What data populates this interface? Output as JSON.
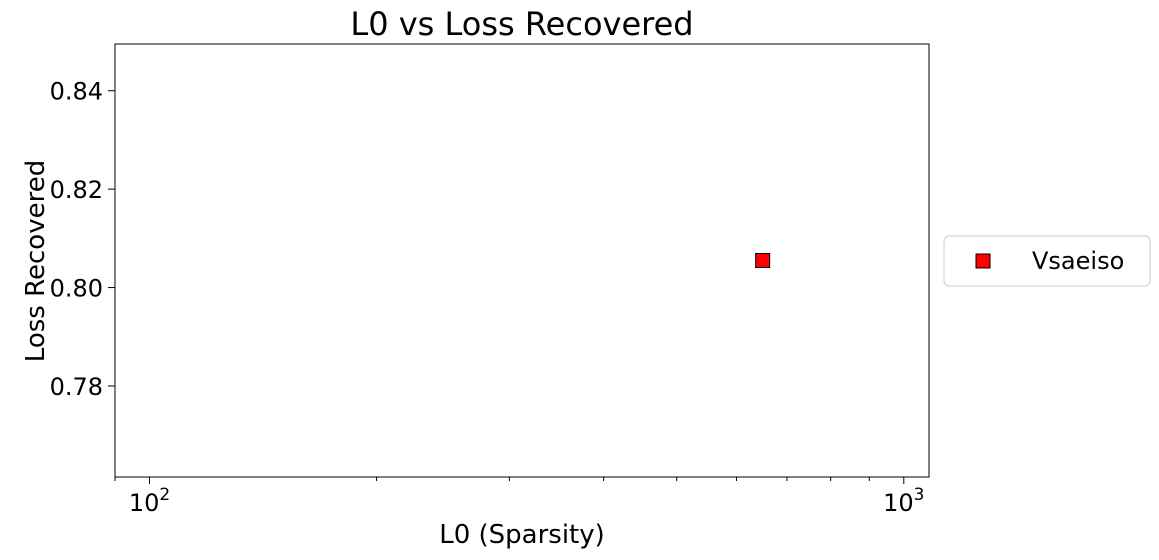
{
  "chart_data": {
    "type": "scatter",
    "title": "L0 vs Loss Recovered",
    "xlabel": "L0 (Sparsity)",
    "ylabel": "Loss Recovered",
    "xscale": "log",
    "xlim": [
      90,
      1080
    ],
    "ylim": [
      0.7615,
      0.8495
    ],
    "x_major_ticks": [
      100,
      1000
    ],
    "x_major_tick_labels": [
      {
        "base": "10",
        "exp": "2"
      },
      {
        "base": "10",
        "exp": "3"
      }
    ],
    "x_minor_ticks": [
      90,
      200,
      300,
      400,
      500,
      600,
      700,
      800,
      900
    ],
    "y_ticks": [
      0.78,
      0.8,
      0.82,
      0.84
    ],
    "y_tick_labels": [
      "0.78",
      "0.80",
      "0.82",
      "0.84"
    ],
    "grid": false,
    "legend_position": "outside-right",
    "series": [
      {
        "name": "Vsaeiso",
        "marker": "square",
        "color": "#ff0000",
        "edge_color": "#000000",
        "points": [
          {
            "x": 650,
            "y": 0.8055
          }
        ]
      }
    ]
  }
}
